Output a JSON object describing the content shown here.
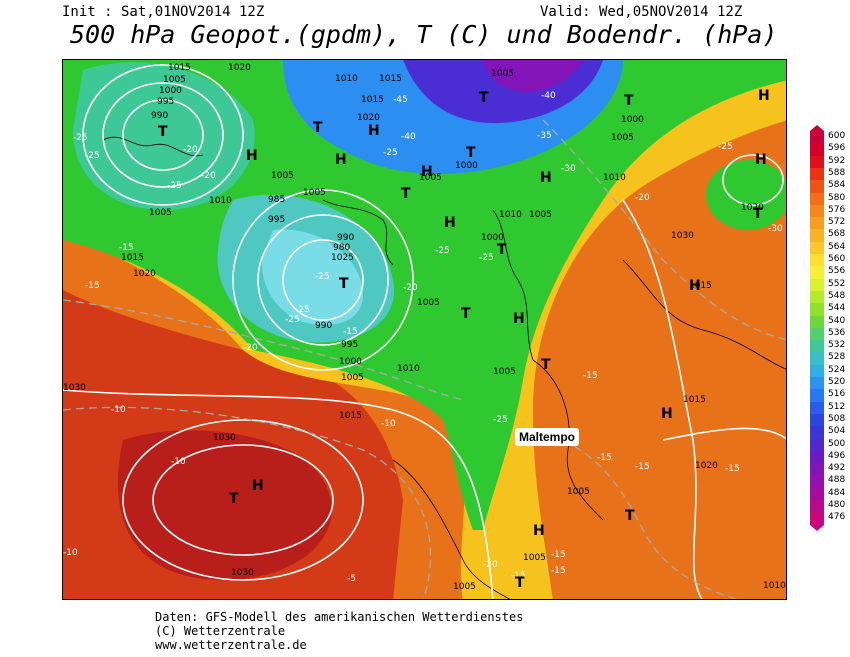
{
  "header": {
    "init": "Init : Sat,01NOV2014 12Z",
    "valid": "Valid: Wed,05NOV2014 12Z",
    "title": "500 hPa Geopot.(gpdm), T (C) und Bodendr. (hPa)"
  },
  "annotation": "Maltempo",
  "pressure_labels": [
    "1015",
    "1010",
    "1005",
    "1000",
    "995",
    "990",
    "1020",
    "985",
    "980",
    "1025",
    "1030"
  ],
  "temperature_labels": [
    "-25",
    "-20",
    "-15",
    "-10",
    "-30",
    "-35",
    "-40",
    "-45",
    "-5"
  ],
  "center_labels": [
    "H",
    "T"
  ],
  "legend": {
    "values": [
      "600",
      "596",
      "592",
      "588",
      "584",
      "580",
      "576",
      "572",
      "568",
      "564",
      "560",
      "556",
      "552",
      "548",
      "544",
      "540",
      "536",
      "532",
      "528",
      "524",
      "520",
      "516",
      "512",
      "508",
      "504",
      "500",
      "496",
      "492",
      "488",
      "484",
      "480",
      "476"
    ],
    "colors": [
      "#c8003c",
      "#d40028",
      "#e0101a",
      "#e83414",
      "#ee5416",
      "#f26e18",
      "#f5871c",
      "#f89c22",
      "#fab228",
      "#fcc82c",
      "#fde030",
      "#f5f034",
      "#d8f232",
      "#b4ea2c",
      "#8ee22a",
      "#6cd83c",
      "#54d06a",
      "#40c89a",
      "#38c0c6",
      "#30aee6",
      "#2c94f0",
      "#2a78f0",
      "#2a5cec",
      "#2c46e0",
      "#3a36d6",
      "#5028cc",
      "#6a1cc2",
      "#8214b8",
      "#9610ac",
      "#a80c9c",
      "#b80a8a",
      "#c8087a"
    ]
  },
  "footer": {
    "line1": "Daten: GFS-Modell des amerikanischen Wetterdienstes",
    "line2": "(C) Wetterzentrale",
    "line3": "www.wetterzentrale.de"
  }
}
